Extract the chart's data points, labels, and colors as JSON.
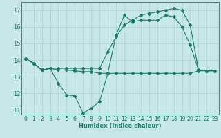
{
  "xlabel": "Humidex (Indice chaleur)",
  "x": [
    0,
    1,
    2,
    3,
    4,
    5,
    6,
    7,
    8,
    9,
    10,
    11,
    12,
    13,
    14,
    15,
    16,
    17,
    18,
    19,
    20,
    21,
    22,
    23
  ],
  "line1_y": [
    14.1,
    13.8,
    13.4,
    13.5,
    12.6,
    11.9,
    11.85,
    10.8,
    11.1,
    11.5,
    13.2,
    15.5,
    16.7,
    16.3,
    16.4,
    16.4,
    16.4,
    16.7,
    16.6,
    16.0,
    14.9,
    13.4,
    13.35,
    13.35
  ],
  "line2_y": [
    14.1,
    13.8,
    13.4,
    13.5,
    13.4,
    13.4,
    13.35,
    13.3,
    13.3,
    13.2,
    13.2,
    13.2,
    13.2,
    13.2,
    13.2,
    13.2,
    13.2,
    13.2,
    13.2,
    13.2,
    13.2,
    13.35,
    13.35,
    13.35
  ],
  "line3_y": [
    14.1,
    13.8,
    13.4,
    13.5,
    13.5,
    13.5,
    13.5,
    13.5,
    13.5,
    13.5,
    14.5,
    15.4,
    16.1,
    16.4,
    16.7,
    16.8,
    16.9,
    17.0,
    17.1,
    17.0,
    16.1,
    13.4,
    13.35,
    13.35
  ],
  "ylim_min": 10.7,
  "ylim_max": 17.5,
  "yticks": [
    11,
    12,
    13,
    14,
    15,
    16,
    17
  ],
  "xlim_min": -0.5,
  "xlim_max": 23.5,
  "color": "#1a7a6e",
  "bg_color": "#c8e8e8",
  "grid_color": "#a8d0d0",
  "linewidth": 0.8,
  "markersize": 2.0,
  "xlabel_fontsize": 6.0,
  "tick_fontsize": 5.5
}
